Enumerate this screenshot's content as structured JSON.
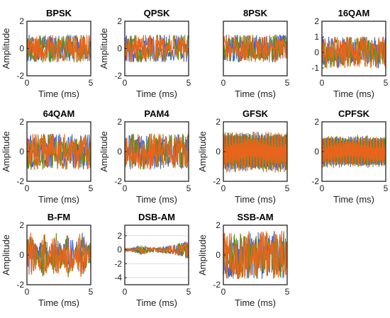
{
  "colors": {
    "series1": "#3a63d6",
    "series2": "#6a8a1a",
    "series3": "#e8641c",
    "axis": "#222222",
    "grid": "#dddddd"
  },
  "chart_data": [
    {
      "type": "line",
      "title": "BPSK",
      "xlabel": "Time (ms)",
      "ylabel": "Amplitude",
      "xlim": [
        0,
        5
      ],
      "ylim": [
        -2,
        2
      ],
      "xticks": [
        "0",
        "5"
      ],
      "yticks": [
        "-2",
        "0",
        "2"
      ],
      "amplitude": 1.0,
      "envelope": "none",
      "grid": false
    },
    {
      "type": "line",
      "title": "QPSK",
      "xlabel": "Time (ms)",
      "ylabel": "Amplitude",
      "xlim": [
        0,
        5
      ],
      "ylim": [
        -2,
        2
      ],
      "xticks": [
        "0",
        "5"
      ],
      "yticks": [
        "-2",
        "0",
        "2"
      ],
      "amplitude": 1.0,
      "envelope": "none",
      "grid": false
    },
    {
      "type": "line",
      "title": "8PSK",
      "xlabel": "Time (ms)",
      "ylabel": "",
      "xlim": [
        0,
        5
      ],
      "ylim": [
        -2,
        2
      ],
      "xticks": [
        "0",
        "5"
      ],
      "yticks": [],
      "amplitude": 1.0,
      "envelope": "none",
      "grid": false
    },
    {
      "type": "line",
      "title": "16QAM",
      "xlabel": "Time (ms)",
      "ylabel": "",
      "xlim": [
        0,
        5
      ],
      "ylim": [
        -1.5,
        2
      ],
      "xticks": [
        "0",
        "5"
      ],
      "yticks": [
        "-1",
        "0",
        "1",
        "2"
      ],
      "amplitude": 1.0,
      "envelope": "none",
      "grid": false
    },
    {
      "type": "line",
      "title": "64QAM",
      "xlabel": "Time (ms)",
      "ylabel": "Amplitude",
      "xlim": [
        0,
        5
      ],
      "ylim": [
        -2,
        2
      ],
      "xticks": [
        "0",
        "5"
      ],
      "yticks": [
        "-2",
        "0",
        "2"
      ],
      "amplitude": 1.2,
      "envelope": "none",
      "grid": false
    },
    {
      "type": "line",
      "title": "PAM4",
      "xlabel": "Time (ms)",
      "ylabel": "Amplitude",
      "xlim": [
        0,
        5
      ],
      "ylim": [
        -2,
        2
      ],
      "xticks": [
        "0",
        "5"
      ],
      "yticks": [
        "-2",
        "0",
        "2"
      ],
      "amplitude": 1.2,
      "envelope": "none",
      "grid": false
    },
    {
      "type": "line",
      "title": "GFSK",
      "xlabel": "Time (ms)",
      "ylabel": "Amplitude",
      "xlim": [
        0,
        5
      ],
      "ylim": [
        -2,
        2
      ],
      "xticks": [
        "0",
        "5"
      ],
      "yticks": [
        "-2",
        "0",
        "2"
      ],
      "amplitude": 1.4,
      "envelope": "none",
      "grid": false
    },
    {
      "type": "line",
      "title": "CPFSK",
      "xlabel": "Time (ms)",
      "ylabel": "",
      "xlim": [
        0,
        5
      ],
      "ylim": [
        -2,
        2
      ],
      "xticks": [
        "0",
        "5"
      ],
      "yticks": [
        "-2",
        "0",
        "2"
      ],
      "amplitude": 1.1,
      "envelope": "none",
      "grid": false
    },
    {
      "type": "line",
      "title": "B-FM",
      "xlabel": "Time (ms)",
      "ylabel": "Amplitude",
      "xlim": [
        0,
        5
      ],
      "ylim": [
        -2,
        2
      ],
      "xticks": [
        "0",
        "5"
      ],
      "yticks": [
        "-2",
        "0",
        "2"
      ],
      "amplitude": 1.5,
      "envelope": "fm",
      "grid": false
    },
    {
      "type": "line",
      "title": "DSB-AM",
      "xlabel": "Time (ms)",
      "ylabel": "",
      "xlim": [
        0,
        5
      ],
      "ylim": [
        -5,
        3.5
      ],
      "xticks": [
        "0",
        "5"
      ],
      "yticks": [
        "-4",
        "-2",
        "0",
        "2"
      ],
      "amplitude": 0.6,
      "envelope": "am",
      "grid": true
    },
    {
      "type": "line",
      "title": "SSB-AM",
      "xlabel": "Time (ms)",
      "ylabel": "Amplitude",
      "xlim": [
        0,
        5
      ],
      "ylim": [
        -2,
        2
      ],
      "xticks": [
        "0",
        "5"
      ],
      "yticks": [
        "-2",
        "0",
        "2"
      ],
      "amplitude": 1.6,
      "envelope": "none",
      "grid": false
    }
  ]
}
